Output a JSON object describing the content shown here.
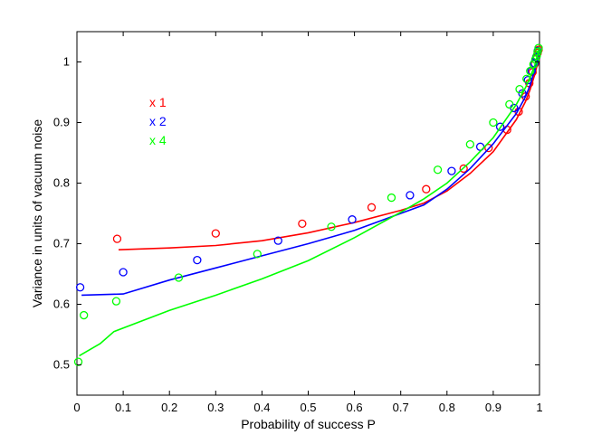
{
  "chart_data": {
    "type": "scatter",
    "xlabel": "Probability of success P",
    "ylabel": "Variance in units of vacuum noise",
    "xlim": [
      0,
      1
    ],
    "ylim": [
      0.45,
      1.05
    ],
    "x_ticks": [
      0,
      0.1,
      0.2,
      0.3,
      0.4,
      0.5,
      0.6,
      0.7,
      0.8,
      0.9,
      1
    ],
    "y_ticks": [
      0.5,
      0.6,
      0.7,
      0.8,
      0.9,
      1
    ],
    "grid": false,
    "legend_position": "upper-left (inside axes)",
    "series": [
      {
        "name": "1",
        "legend_label": "x 1",
        "color": "#ff0000",
        "line": {
          "x": [
            0.09,
            0.2,
            0.3,
            0.4,
            0.5,
            0.6,
            0.7,
            0.75,
            0.8,
            0.85,
            0.9,
            0.95,
            0.97,
            0.98,
            0.99,
            0.995,
            1.0
          ],
          "y": [
            0.69,
            0.693,
            0.697,
            0.705,
            0.718,
            0.735,
            0.755,
            0.767,
            0.787,
            0.816,
            0.852,
            0.905,
            0.935,
            0.955,
            0.98,
            0.995,
            1.015
          ]
        },
        "markers": {
          "x": [
            0.087,
            0.3,
            0.487,
            0.637,
            0.755,
            0.836,
            0.89,
            0.93,
            0.955,
            0.97,
            0.978,
            0.985,
            0.99,
            0.993,
            0.996,
            0.998
          ],
          "y": [
            0.708,
            0.717,
            0.733,
            0.76,
            0.79,
            0.824,
            0.858,
            0.888,
            0.918,
            0.943,
            0.965,
            0.983,
            0.997,
            1.007,
            1.015,
            1.02
          ]
        }
      },
      {
        "name": "2",
        "legend_label": "x 2",
        "color": "#0000ff",
        "line": {
          "x": [
            0.01,
            0.1,
            0.2,
            0.3,
            0.4,
            0.5,
            0.6,
            0.7,
            0.75,
            0.8,
            0.85,
            0.9,
            0.95,
            0.97,
            0.98,
            0.99,
            1.0
          ],
          "y": [
            0.615,
            0.617,
            0.64,
            0.66,
            0.68,
            0.7,
            0.722,
            0.75,
            0.764,
            0.79,
            0.824,
            0.865,
            0.915,
            0.943,
            0.962,
            0.988,
            1.02
          ]
        },
        "markers": {
          "x": [
            0.007,
            0.1,
            0.26,
            0.435,
            0.595,
            0.72,
            0.81,
            0.872,
            0.915,
            0.945,
            0.963,
            0.975,
            0.983,
            0.989,
            0.993,
            0.996
          ],
          "y": [
            0.628,
            0.653,
            0.673,
            0.705,
            0.74,
            0.78,
            0.82,
            0.86,
            0.893,
            0.924,
            0.948,
            0.97,
            0.985,
            0.998,
            1.008,
            1.018
          ]
        }
      },
      {
        "name": "4",
        "legend_label": "x 4",
        "color": "#00ff00",
        "line": {
          "x": [
            0.005,
            0.05,
            0.08,
            0.2,
            0.3,
            0.4,
            0.5,
            0.6,
            0.7,
            0.75,
            0.8,
            0.85,
            0.9,
            0.95,
            0.97,
            0.98,
            0.99,
            1.0
          ],
          "y": [
            0.515,
            0.535,
            0.555,
            0.59,
            0.615,
            0.642,
            0.672,
            0.71,
            0.752,
            0.774,
            0.8,
            0.835,
            0.875,
            0.93,
            0.958,
            0.975,
            0.995,
            1.025
          ]
        },
        "markers": {
          "x": [
            0.003,
            0.015,
            0.085,
            0.22,
            0.39,
            0.55,
            0.68,
            0.78,
            0.85,
            0.9,
            0.935,
            0.957,
            0.972,
            0.98,
            0.987,
            0.991,
            0.994,
            0.996,
            0.998
          ],
          "y": [
            0.505,
            0.582,
            0.605,
            0.644,
            0.683,
            0.728,
            0.776,
            0.822,
            0.864,
            0.9,
            0.93,
            0.955,
            0.972,
            0.985,
            0.996,
            1.004,
            1.01,
            1.017,
            1.023
          ]
        }
      }
    ]
  }
}
